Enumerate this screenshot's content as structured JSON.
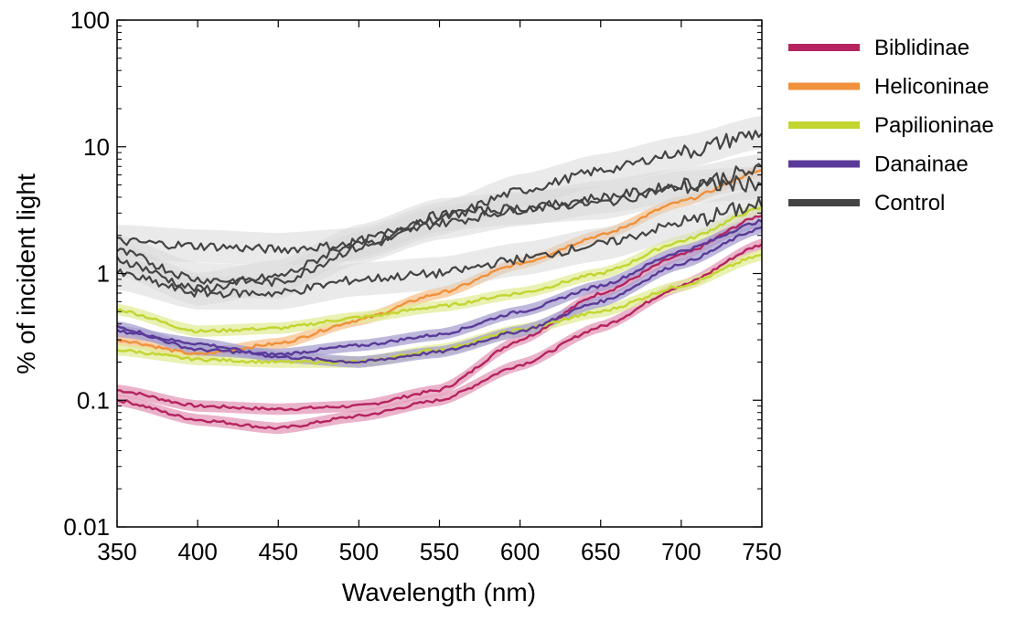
{
  "chart_data": {
    "type": "line",
    "title": "",
    "xlabel": "Wavelength (nm)",
    "ylabel": "% of incident light",
    "xlim": [
      350,
      750
    ],
    "ylim": [
      0.01,
      100
    ],
    "yscale": "log",
    "x_ticks": [
      350,
      400,
      450,
      500,
      550,
      600,
      650,
      700,
      750
    ],
    "x_tick_labels": [
      "350",
      "400",
      "450",
      "500",
      "550",
      "600",
      "650",
      "700",
      "750"
    ],
    "y_ticks": [
      0.01,
      0.1,
      1,
      10,
      100
    ],
    "y_tick_labels": [
      "0.01",
      "0.1",
      "1",
      "10",
      "100"
    ],
    "legend_position": "outside-right",
    "legend": [
      {
        "name": "Biblidinae",
        "color": "#b5245f"
      },
      {
        "name": "Heliconinae",
        "color": "#f0903a"
      },
      {
        "name": "Papilioninae",
        "color": "#c2d530"
      },
      {
        "name": "Danainae",
        "color": "#5a3a98"
      },
      {
        "name": "Control",
        "color": "#444444"
      }
    ],
    "series": [
      {
        "group": "Biblidinae",
        "color": "#b5245f",
        "band": "#e39ab8",
        "x": [
          350,
          400,
          450,
          500,
          550,
          600,
          650,
          700,
          750
        ],
        "values": [
          0.12,
          0.09,
          0.085,
          0.09,
          0.12,
          0.3,
          0.7,
          1.4,
          2.9
        ]
      },
      {
        "group": "Biblidinae",
        "color": "#b5245f",
        "band": "#e39ab8",
        "x": [
          350,
          400,
          450,
          500,
          550,
          600,
          650,
          700,
          750
        ],
        "values": [
          0.1,
          0.07,
          0.06,
          0.075,
          0.1,
          0.19,
          0.38,
          0.8,
          1.7
        ]
      },
      {
        "group": "Heliconinae",
        "color": "#f0903a",
        "band": "#f7c28e",
        "x": [
          350,
          400,
          450,
          500,
          550,
          600,
          650,
          700,
          750
        ],
        "values": [
          0.3,
          0.23,
          0.28,
          0.43,
          0.7,
          1.2,
          2.0,
          3.7,
          6.5
        ]
      },
      {
        "group": "Papilioninae",
        "color": "#c2d530",
        "band": "#e2ec9a",
        "x": [
          350,
          400,
          450,
          500,
          550,
          600,
          650,
          700,
          750
        ],
        "values": [
          0.52,
          0.35,
          0.37,
          0.45,
          0.55,
          0.7,
          1.0,
          1.8,
          3.3
        ]
      },
      {
        "group": "Papilioninae",
        "color": "#c2d530",
        "band": "#e2ec9a",
        "x": [
          350,
          400,
          450,
          500,
          550,
          600,
          650,
          700,
          750
        ],
        "values": [
          0.25,
          0.21,
          0.2,
          0.2,
          0.25,
          0.36,
          0.5,
          0.8,
          1.4
        ]
      },
      {
        "group": "Danainae",
        "color": "#5a3a98",
        "band": "#a8a0d0",
        "x": [
          350,
          400,
          450,
          500,
          550,
          600,
          650,
          700,
          750
        ],
        "values": [
          0.38,
          0.25,
          0.23,
          0.27,
          0.33,
          0.5,
          0.8,
          1.5,
          2.6
        ]
      },
      {
        "group": "Danainae",
        "color": "#5a3a98",
        "band": "#a8a0d0",
        "x": [
          350,
          400,
          450,
          500,
          550,
          600,
          650,
          700,
          750
        ],
        "values": [
          0.35,
          0.28,
          0.22,
          0.2,
          0.24,
          0.35,
          0.6,
          1.2,
          2.3
        ]
      },
      {
        "group": "Control",
        "color": "#444444",
        "band": "#d8d8d8",
        "x": [
          350,
          400,
          450,
          500,
          550,
          600,
          650,
          700,
          750
        ],
        "values": [
          1.8,
          1.65,
          1.55,
          1.7,
          2.7,
          4.5,
          6.5,
          9.0,
          13
        ]
      },
      {
        "group": "Control",
        "color": "#444444",
        "band": "#d8d8d8",
        "x": [
          350,
          400,
          450,
          500,
          550,
          600,
          650,
          700,
          750
        ],
        "values": [
          1.5,
          0.9,
          0.85,
          1.6,
          2.5,
          3.2,
          4.0,
          5.0,
          6.5
        ]
      },
      {
        "group": "Control",
        "color": "#444444",
        "band": "#d8d8d8",
        "x": [
          350,
          400,
          450,
          500,
          550,
          600,
          650,
          700,
          750
        ],
        "values": [
          1.3,
          0.75,
          0.95,
          1.8,
          2.9,
          3.3,
          3.6,
          4.8,
          5.2
        ]
      },
      {
        "group": "Control",
        "color": "#444444",
        "band": "#d8d8d8",
        "x": [
          350,
          400,
          450,
          500,
          550,
          600,
          650,
          700,
          750
        ],
        "values": [
          1.0,
          0.7,
          0.7,
          0.9,
          1.0,
          1.3,
          1.7,
          2.5,
          3.5
        ]
      }
    ]
  }
}
